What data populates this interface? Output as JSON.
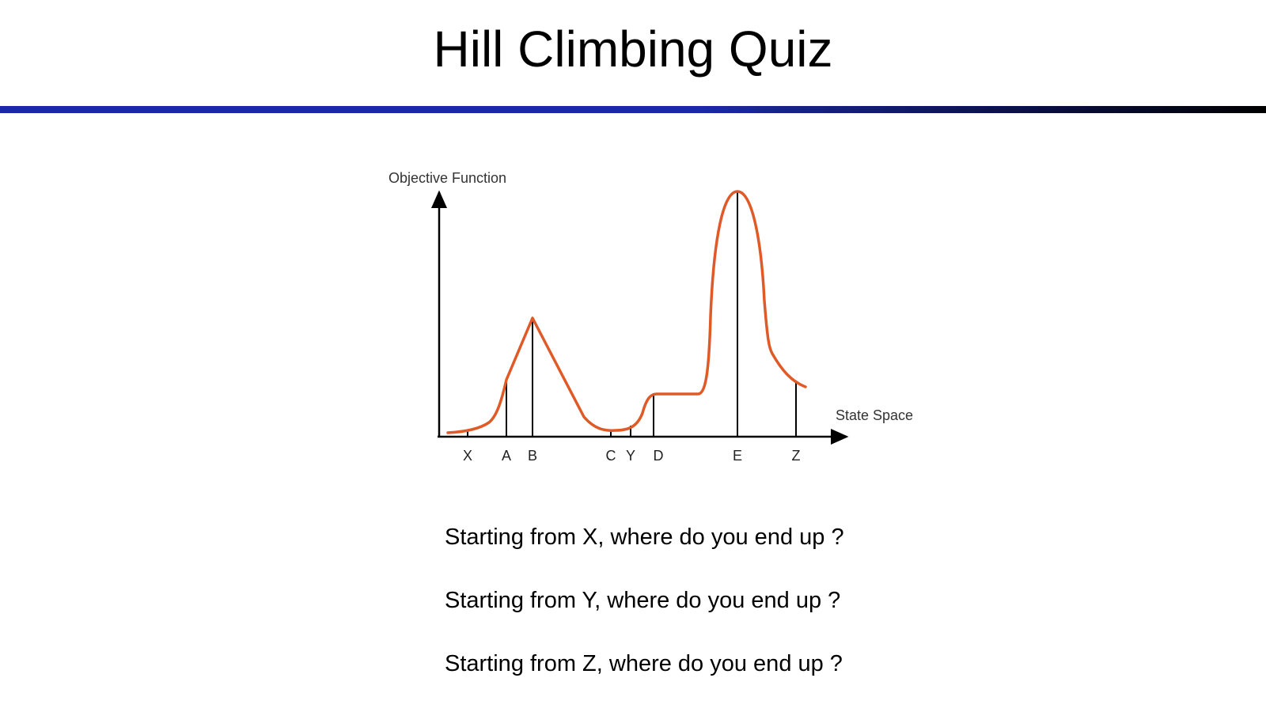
{
  "slide": {
    "title": "Hill Climbing Quiz"
  },
  "diagram": {
    "y_axis_label": "Objective Function",
    "x_axis_label": "State Space",
    "curve_color": "#e05a28",
    "points": [
      {
        "label": "X"
      },
      {
        "label": "A"
      },
      {
        "label": "B"
      },
      {
        "label": "C"
      },
      {
        "label": "Y"
      },
      {
        "label": "D"
      },
      {
        "label": "E"
      },
      {
        "label": "Z"
      }
    ]
  },
  "questions": [
    "Starting from X, where do you end up ?",
    "Starting from Y, where do you end up ?",
    "Starting from Z, where do you end up ?"
  ]
}
